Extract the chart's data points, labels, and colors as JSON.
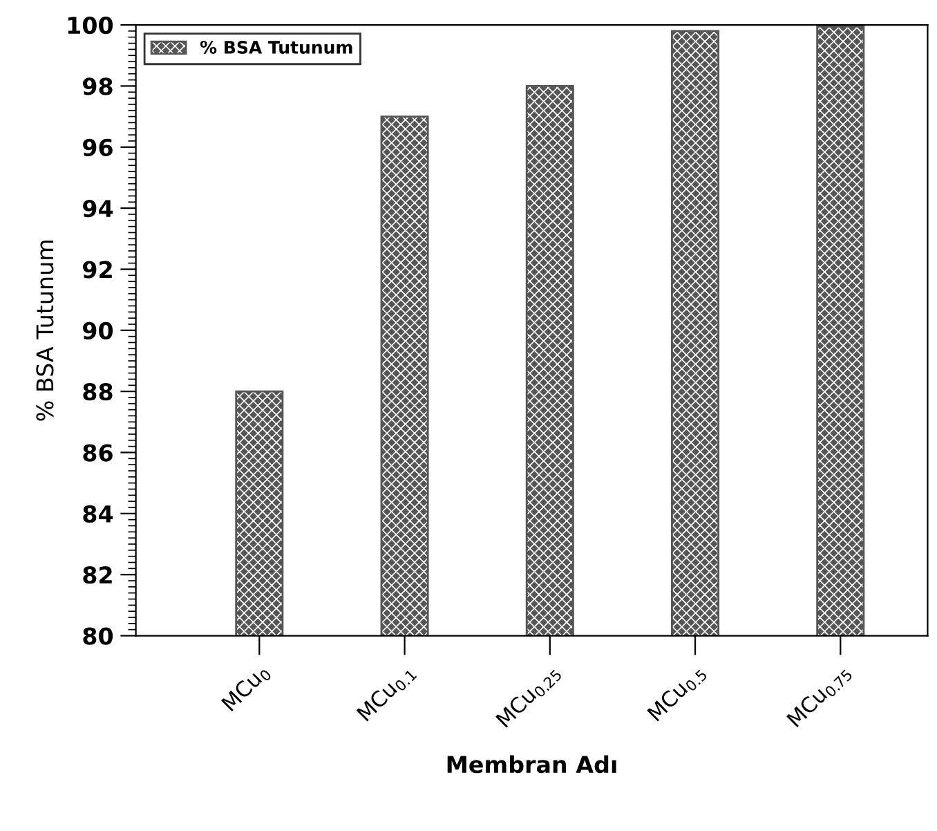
{
  "chart_data": {
    "type": "bar",
    "categories": [
      "MCu$_{0}$",
      "MCu$_{0.1}$",
      "MCu$_{0.25}$",
      "MCu$_{0.5}$",
      "MCu$_{0.75}$"
    ],
    "series": [
      {
        "name": "% BSA Tutunum",
        "color": "#555555",
        "values": [
          88,
          97,
          98,
          99.8,
          99.95
        ]
      }
    ],
    "xlabel": "Membran Adı",
    "ylabel": "% BSA Tutunum",
    "ylim": [
      80,
      100
    ],
    "yticks": [
      80,
      82,
      84,
      86,
      88,
      90,
      92,
      94,
      96,
      98,
      100
    ],
    "grid": false,
    "legend": "top left"
  }
}
